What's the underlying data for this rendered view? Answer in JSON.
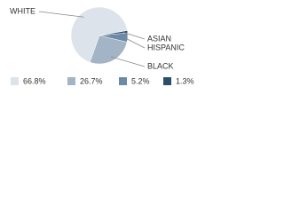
{
  "chart_data": {
    "type": "pie",
    "categories": [
      "WHITE",
      "BLACK",
      "HISPANIC",
      "ASIAN"
    ],
    "values": [
      66.8,
      26.7,
      5.2,
      1.3
    ],
    "value_labels": [
      "66.8%",
      "26.7%",
      "5.2%",
      "1.3%"
    ],
    "colors": [
      "#dce3eb",
      "#a3b4c6",
      "#6b8aa8",
      "#2e4d6b"
    ]
  }
}
